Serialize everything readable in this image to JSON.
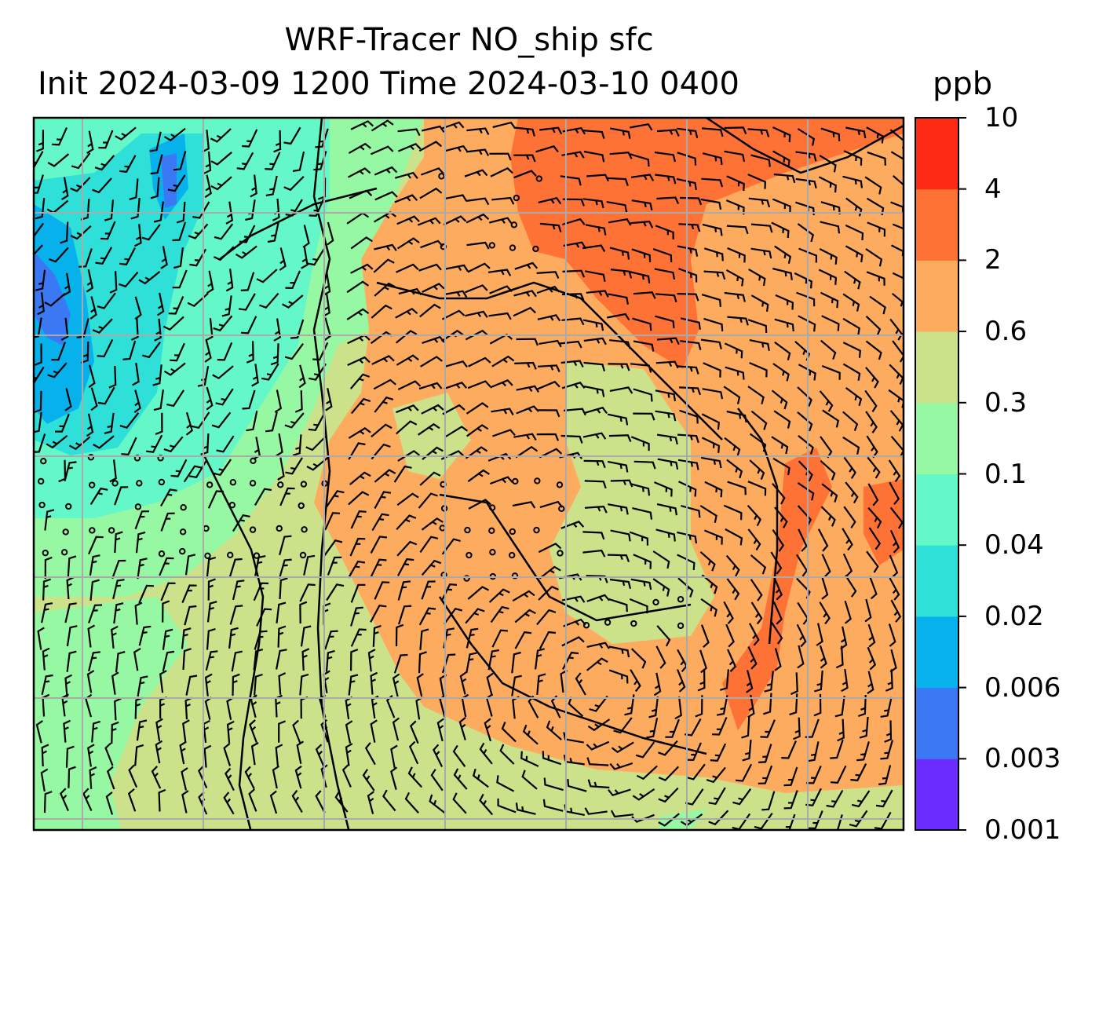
{
  "title_line1": "WRF-Tracer NO_ship sfc",
  "title_line2": "Init 2024-03-09 1200 Time 2024-03-10 0400",
  "units": "ppb",
  "colorbar": {
    "ticks": [
      "0.001",
      "0.003",
      "0.006",
      "0.02",
      "0.04",
      "0.1",
      "0.3",
      "0.6",
      "2",
      "4",
      "10"
    ],
    "colors": [
      "#6a2cff",
      "#3a78f4",
      "#07b1ec",
      "#2ee0d8",
      "#64f8c8",
      "#96f8a2",
      "#cbe28a",
      "#fdac5f",
      "#fe7236",
      "#fe2a14"
    ]
  },
  "field_colors": {
    "blue": "#3a78f4",
    "cyan": "#07b1ec",
    "teal": "#2ee0d8",
    "aqua": "#64f8c8",
    "green": "#96f8a2",
    "olive": "#cbe28a",
    "orange": "#fdac5f",
    "dark_orange": "#fe7236",
    "red": "#fe2a14"
  },
  "gridline_color": "#aaaaaa"
}
